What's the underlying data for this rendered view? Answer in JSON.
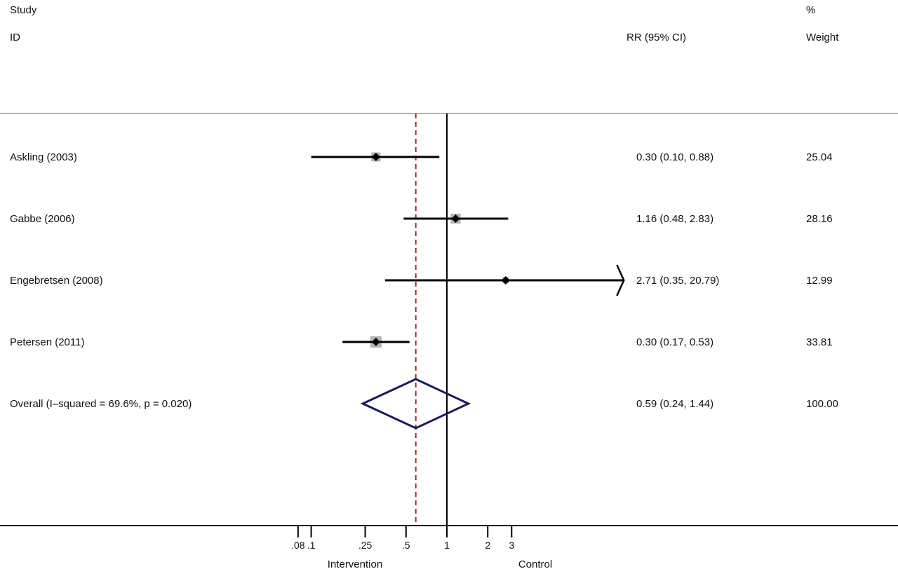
{
  "chart_data": {
    "type": "forest",
    "header": {
      "study_line1": "Study",
      "study_line2": "ID",
      "effect_label": "RR (95% CI)",
      "weight_line1": "%",
      "weight_line2": "Weight"
    },
    "studies": [
      {
        "label": "Askling (2003)",
        "rr": 0.3,
        "lower": 0.1,
        "upper": 0.88,
        "ci_text": "0.30 (0.10, 0.88)",
        "weight": "25.04",
        "weight_value": 25.04
      },
      {
        "label": "Gabbe (2006)",
        "rr": 1.16,
        "lower": 0.48,
        "upper": 2.83,
        "ci_text": "1.16 (0.48, 2.83)",
        "weight": "28.16",
        "weight_value": 28.16
      },
      {
        "label": "Engebretsen (2008)",
        "rr": 2.71,
        "lower": 0.35,
        "upper": 20.79,
        "ci_text": "2.71 (0.35, 20.79)",
        "weight": "12.99",
        "weight_value": 12.99
      },
      {
        "label": "Petersen (2011)",
        "rr": 0.3,
        "lower": 0.17,
        "upper": 0.53,
        "ci_text": "0.30 (0.17, 0.53)",
        "weight": "33.81",
        "weight_value": 33.81
      }
    ],
    "overall": {
      "label": "Overall  (I–squared = 69.6%, p = 0.020)",
      "rr": 0.59,
      "lower": 0.24,
      "upper": 1.44,
      "ci_text": "0.59 (0.24, 1.44)",
      "weight": "100.00"
    },
    "x_scale": "log",
    "x_ticks": [
      {
        "value": 0.08,
        "label": ".08"
      },
      {
        "value": 0.1,
        "label": ".1"
      },
      {
        "value": 0.25,
        "label": ".25"
      },
      {
        "value": 0.5,
        "label": ".5"
      },
      {
        "value": 1,
        "label": "1"
      },
      {
        "value": 2,
        "label": "2"
      },
      {
        "value": 3,
        "label": "3"
      }
    ],
    "x_max_shown": 3,
    "null_line": 1,
    "left_direction_label": "Intervention",
    "right_direction_label": "Control",
    "colors": {
      "ci_line": "#000000",
      "weight_box": "#b3b3b3",
      "point": "#000000",
      "overall_diamond": "#1a1a5e",
      "pooled_line": "#a52a2a",
      "separator": "#b0b0b0"
    }
  }
}
